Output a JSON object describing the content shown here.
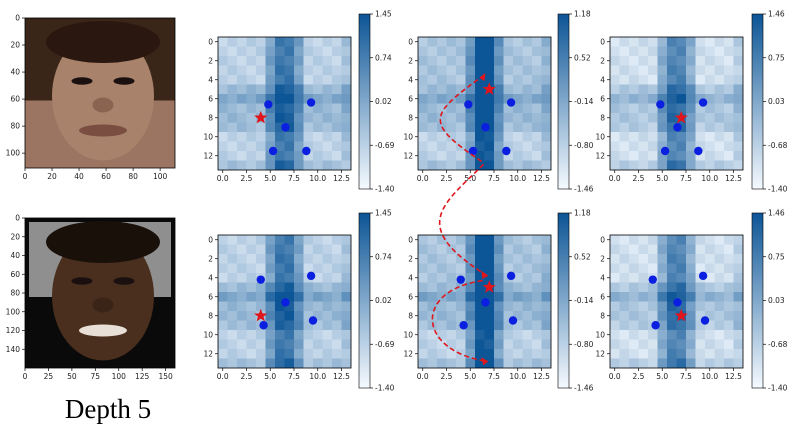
{
  "caption": "Depth 5",
  "chart_data": {
    "type": "heatmap",
    "images": [
      {
        "xticks": [
          "0",
          "20",
          "40",
          "60",
          "80",
          "100"
        ],
        "yticks": [
          "0",
          "20",
          "40",
          "60",
          "80",
          "100"
        ],
        "xrange": [
          0,
          111
        ],
        "yrange": [
          0,
          111
        ],
        "skin": "#a8826a",
        "bg": "#3a2618"
      },
      {
        "xticks": [
          "0",
          "25",
          "50",
          "75",
          "100",
          "125",
          "150"
        ],
        "yticks": [
          "0",
          "20",
          "40",
          "60",
          "80",
          "100",
          "120",
          "140"
        ],
        "xrange": [
          0,
          160
        ],
        "yrange": [
          0,
          160
        ],
        "skin": "#4a2e1e",
        "bg": "#0a0a0a"
      }
    ],
    "maps": {
      "xticks": [
        "0.0",
        "2.5",
        "5.0",
        "7.5",
        "10.0",
        "12.5"
      ],
      "yticks": [
        "0",
        "2",
        "4",
        "6",
        "8",
        "10",
        "12"
      ],
      "grid_size": 14,
      "colorbars": [
        {
          "ticks": [
            "1.45",
            "0.74",
            "0.02",
            "-0.69",
            "-1.40"
          ]
        },
        {
          "ticks": [
            "1.18",
            "0.52",
            "-0.14",
            "-0.80",
            "-1.46"
          ]
        },
        {
          "ticks": [
            "1.46",
            "0.75",
            "0.03",
            "-0.68",
            "-1.40"
          ]
        }
      ],
      "panels": [
        {
          "row": 0,
          "col": 0,
          "star": [
            4,
            8
          ],
          "dots": [
            [
              4.8,
              6.6
            ],
            [
              9.3,
              6.4
            ],
            [
              6.6,
              9
            ],
            [
              5.3,
              11.5
            ],
            [
              8.8,
              11.5
            ]
          ]
        },
        {
          "row": 0,
          "col": 1,
          "star": [
            7,
            5
          ],
          "dots": [
            [
              4.8,
              6.6
            ],
            [
              9.3,
              6.4
            ],
            [
              6.6,
              9
            ],
            [
              5.3,
              11.5
            ],
            [
              8.8,
              11.5
            ]
          ]
        },
        {
          "row": 0,
          "col": 2,
          "star": [
            7,
            8
          ],
          "dots": [
            [
              4.8,
              6.6
            ],
            [
              9.3,
              6.4
            ],
            [
              6.6,
              9
            ],
            [
              5.3,
              11.5
            ],
            [
              8.8,
              11.5
            ]
          ]
        },
        {
          "row": 1,
          "col": 0,
          "star": [
            4,
            8
          ],
          "dots": [
            [
              4,
              4.2
            ],
            [
              9.3,
              3.8
            ],
            [
              6.6,
              6.6
            ],
            [
              4.3,
              9
            ],
            [
              9.5,
              8.5
            ]
          ]
        },
        {
          "row": 1,
          "col": 1,
          "star": [
            7,
            5
          ],
          "dots": [
            [
              4,
              4.2
            ],
            [
              9.3,
              3.8
            ],
            [
              6.6,
              6.6
            ],
            [
              4.3,
              9
            ],
            [
              9.5,
              8.5
            ]
          ]
        },
        {
          "row": 1,
          "col": 2,
          "star": [
            7,
            8
          ],
          "dots": [
            [
              4,
              4.2
            ],
            [
              9.3,
              3.8
            ],
            [
              6.6,
              6.6
            ],
            [
              4.3,
              9
            ],
            [
              9.5,
              8.5
            ]
          ]
        }
      ],
      "arrows": [
        {
          "from_panel": [
            0,
            1
          ],
          "from": [
            6.5,
            12.8
          ],
          "to": [
            6.5,
            3.8
          ],
          "dir": "up"
        },
        {
          "from_panel": [
            1,
            1
          ],
          "from": [
            6.5,
            3.8
          ],
          "to": [
            6.5,
            12.8
          ],
          "dir": "down"
        }
      ]
    }
  }
}
